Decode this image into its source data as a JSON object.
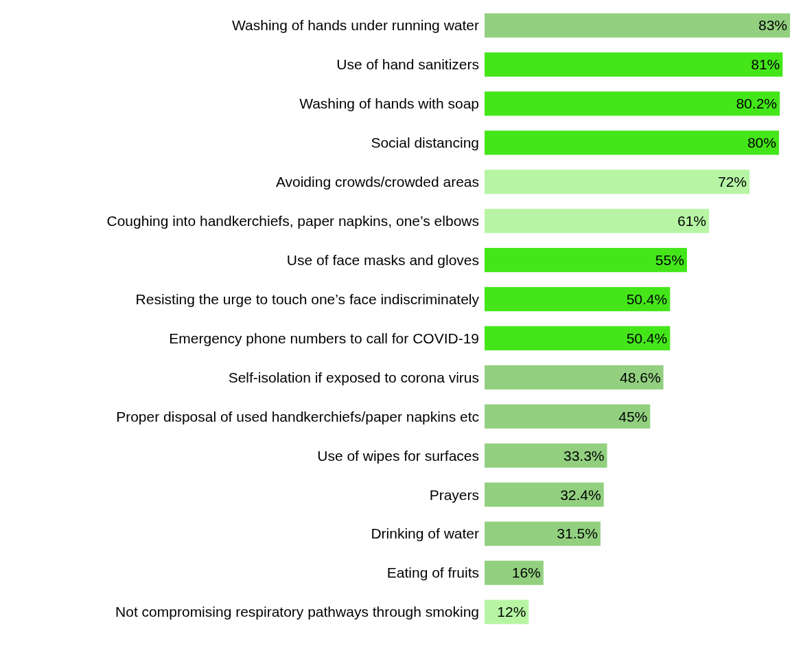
{
  "chart_data": {
    "type": "bar",
    "orientation": "horizontal",
    "categories": [
      "Washing of hands under running water",
      "Use of hand sanitizers",
      "Washing of hands with soap",
      "Social distancing",
      "Avoiding crowds/crowded areas",
      "Coughing into handkerchiefs, paper napkins, one’s elbows",
      "Use of face masks and gloves",
      "Resisting the urge to touch one’s face indiscriminately",
      "Emergency phone numbers to call for COVID-19",
      "Self-isolation if exposed to corona virus",
      "Proper disposal of used handkerchiefs/paper napkins etc",
      "Use of wipes for surfaces",
      "Prayers",
      "Drinking of water",
      "Eating of fruits",
      "Not compromising respiratory pathways through smoking"
    ],
    "values": [
      83,
      81,
      80.2,
      80,
      72,
      61,
      55,
      50.4,
      50.4,
      48.6,
      45,
      33.3,
      32.4,
      31.5,
      16,
      12
    ],
    "value_labels": [
      "83%",
      "81%",
      "80.2%",
      "80%",
      "72%",
      "61%",
      "55%",
      "50.4%",
      "50.4%",
      "48.6%",
      "45%",
      "33.3%",
      "32.4%",
      "31.5%",
      "16%",
      "12%"
    ],
    "colors": [
      "#92d080",
      "#44e61a",
      "#44e61a",
      "#44e61a",
      "#b7f5a5",
      "#b7f5a5",
      "#44e61a",
      "#44e61a",
      "#44e61a",
      "#92d080",
      "#92d080",
      "#92d080",
      "#92d080",
      "#92d080",
      "#92d080",
      "#b7f5a5"
    ]
  }
}
